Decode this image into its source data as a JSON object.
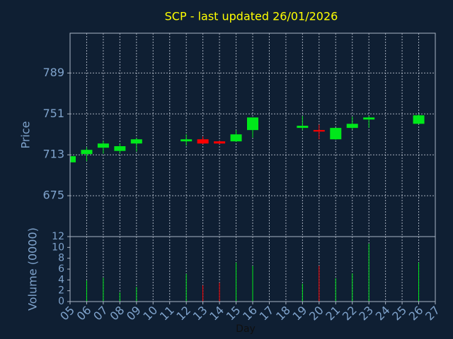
{
  "chart_data": [
    {
      "type": "candlestick",
      "title": "SCP - last updated 26/01/2026",
      "ylabel": "Price",
      "x": [
        5,
        6,
        7,
        8,
        9,
        12,
        13,
        14,
        15,
        16,
        19,
        20,
        21,
        22,
        23,
        26
      ],
      "open": [
        706,
        713.7,
        719.6,
        716.6,
        723.5,
        725.5,
        727.4,
        725.5,
        725.5,
        736,
        738,
        736,
        727.4,
        738,
        745.8,
        741.8
      ],
      "high": [
        712,
        720,
        726,
        723.5,
        728.7,
        732,
        730,
        726,
        736,
        747.7,
        749,
        741,
        738,
        748.4,
        749,
        750.6
      ],
      "low": [
        705.5,
        707,
        714,
        714,
        716,
        721.5,
        722.8,
        723,
        725,
        729,
        736,
        727.4,
        727,
        736.6,
        738,
        741.8
      ],
      "close": [
        711.7,
        717.6,
        723.5,
        721,
        727.4,
        727.4,
        723.5,
        723.5,
        732,
        747.7,
        740,
        734.6,
        738,
        741.8,
        747.7,
        749.7
      ],
      "up_color": "#00e81a",
      "down_color": "#ff0000",
      "xlim": [
        5,
        27
      ],
      "ylim": [
        637,
        826
      ],
      "yticks": [
        675,
        713,
        751,
        789
      ],
      "grid": true
    },
    {
      "type": "bar",
      "ylabel": "Volume (0000)",
      "xlabel": "Day",
      "x": [
        5,
        6,
        7,
        8,
        9,
        12,
        13,
        14,
        15,
        16,
        19,
        20,
        21,
        22,
        23,
        26
      ],
      "values": [
        0,
        3.9,
        4.4,
        1.7,
        2.7,
        5.1,
        3.0,
        3.5,
        7.2,
        6.6,
        3.3,
        6.6,
        4.3,
        5.2,
        10.7,
        7.2
      ],
      "up_color": "#00e81a",
      "down_color": "#ff0000",
      "xlim": [
        5,
        27
      ],
      "ylim": [
        0,
        12
      ],
      "yticks": [
        0,
        2,
        4,
        6,
        8,
        10,
        12
      ],
      "xticks": [
        {
          "value": 5,
          "label": "05"
        },
        {
          "value": 6,
          "label": "06"
        },
        {
          "value": 7,
          "label": "07"
        },
        {
          "value": 8,
          "label": "08"
        },
        {
          "value": 9,
          "label": "09"
        },
        10,
        11,
        12,
        13,
        14,
        15,
        16,
        17,
        18,
        19,
        20,
        21,
        22,
        23,
        24,
        25,
        26,
        27
      ],
      "grid": true
    }
  ]
}
